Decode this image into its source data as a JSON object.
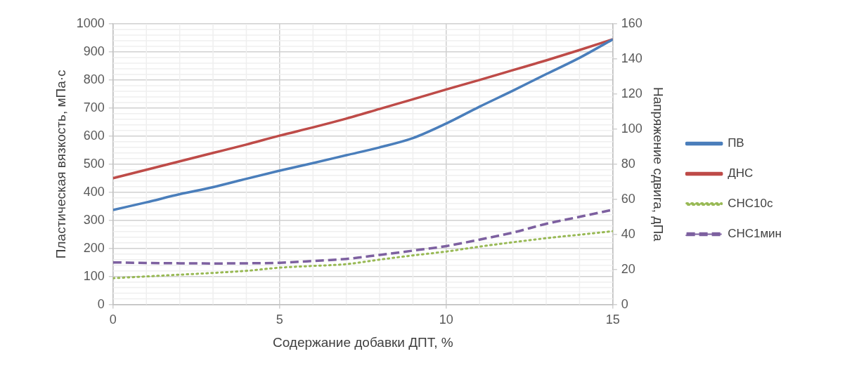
{
  "chart_data": {
    "type": "line",
    "xlabel": "Содержание добавки ДПТ, %",
    "ylabel": "Пластическая вязкость, мПа·с",
    "y2label": "Напряжение сдвига, дПа",
    "x": [
      0,
      1,
      2,
      3,
      4,
      5,
      6,
      7,
      8,
      9,
      10,
      11,
      12,
      13,
      14,
      15
    ],
    "series": [
      {
        "name": "ПВ",
        "color": "#4a7ebb",
        "line_style": "solid",
        "values": [
          337,
          364,
          393,
          418,
          448,
          477,
          504,
          532,
          560,
          593,
          645,
          705,
          762,
          821,
          879,
          945
        ]
      },
      {
        "name": "ДНС",
        "color": "#be4b48",
        "line_style": "solid",
        "axis": "y2",
        "values": [
          72,
          76.8,
          81.6,
          86.4,
          91.2,
          96.3,
          101,
          106,
          111.5,
          117,
          122.6,
          128,
          133.6,
          139.2,
          145.1,
          151.2
        ]
      },
      {
        "name": "СНС10с",
        "color": "#98b954",
        "line_style": "dotted",
        "axis": "y2",
        "values": [
          15,
          16,
          17,
          18,
          19.2,
          21,
          22,
          23,
          25.6,
          28,
          30.2,
          33,
          35.5,
          37.8,
          39.8,
          41.8
        ]
      },
      {
        "name": "СНС1мин",
        "color": "#7d60a0",
        "line_style": "dashed",
        "axis": "y2",
        "values": [
          24,
          23.7,
          23.5,
          23.4,
          23.5,
          23.8,
          24.8,
          26,
          28.3,
          30.7,
          33.3,
          37,
          41,
          46,
          50,
          54
        ]
      }
    ],
    "xlim": [
      0,
      15
    ],
    "xticks": [
      0,
      5,
      10,
      15
    ],
    "ylim": [
      0,
      1000
    ],
    "yticks": [
      0,
      100,
      200,
      300,
      400,
      500,
      600,
      700,
      800,
      900,
      1000
    ],
    "y2lim": [
      0,
      160
    ],
    "y2ticks": [
      0,
      20,
      40,
      60,
      80,
      100,
      120,
      140,
      160
    ],
    "grid": true,
    "legend": "right",
    "marker": "none"
  }
}
